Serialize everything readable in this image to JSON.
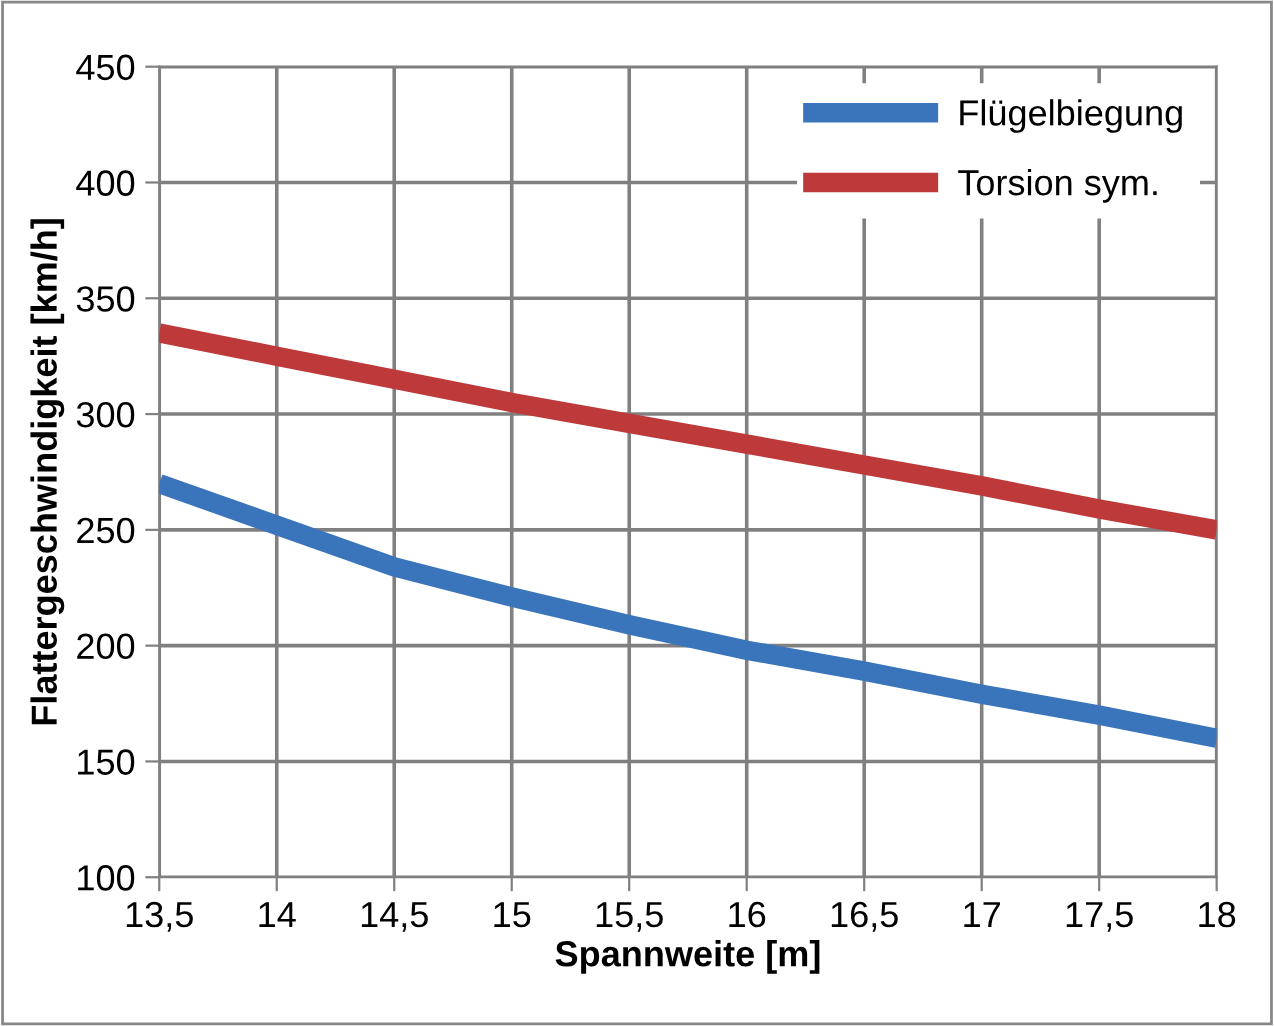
{
  "chart_data": {
    "type": "line",
    "xlabel": "Spannweite [m]",
    "ylabel": "Flattergeschwindigkeit [km/h]",
    "x": [
      13.5,
      14,
      14.5,
      15,
      15.5,
      16,
      16.5,
      17,
      17.5,
      18
    ],
    "series": [
      {
        "name": "Flügelbiegung",
        "color": "#3a75bb",
        "values": [
          270,
          252,
          234,
          221,
          209,
          198,
          189,
          179,
          170,
          160
        ]
      },
      {
        "name": "Torsion sym.",
        "color": "#be3a3a",
        "values": [
          335,
          325,
          315,
          305,
          296,
          287,
          278,
          269,
          259,
          250
        ]
      }
    ],
    "xlim": [
      13.5,
      18
    ],
    "xticks": [
      {
        "value": 13.5,
        "label": "13,5"
      },
      14,
      {
        "value": 14.5,
        "label": "14,5"
      },
      15,
      {
        "value": 15.5,
        "label": "15,5"
      },
      16,
      {
        "value": 16.5,
        "label": "16,5"
      },
      17,
      {
        "value": 17.5,
        "label": "17,5"
      },
      18
    ],
    "ylim": [
      100,
      450
    ],
    "yticks": [
      100,
      150,
      200,
      250,
      300,
      350,
      400,
      450
    ],
    "grid": true,
    "legend": "top right",
    "marker": "none",
    "line_style": "solid"
  }
}
